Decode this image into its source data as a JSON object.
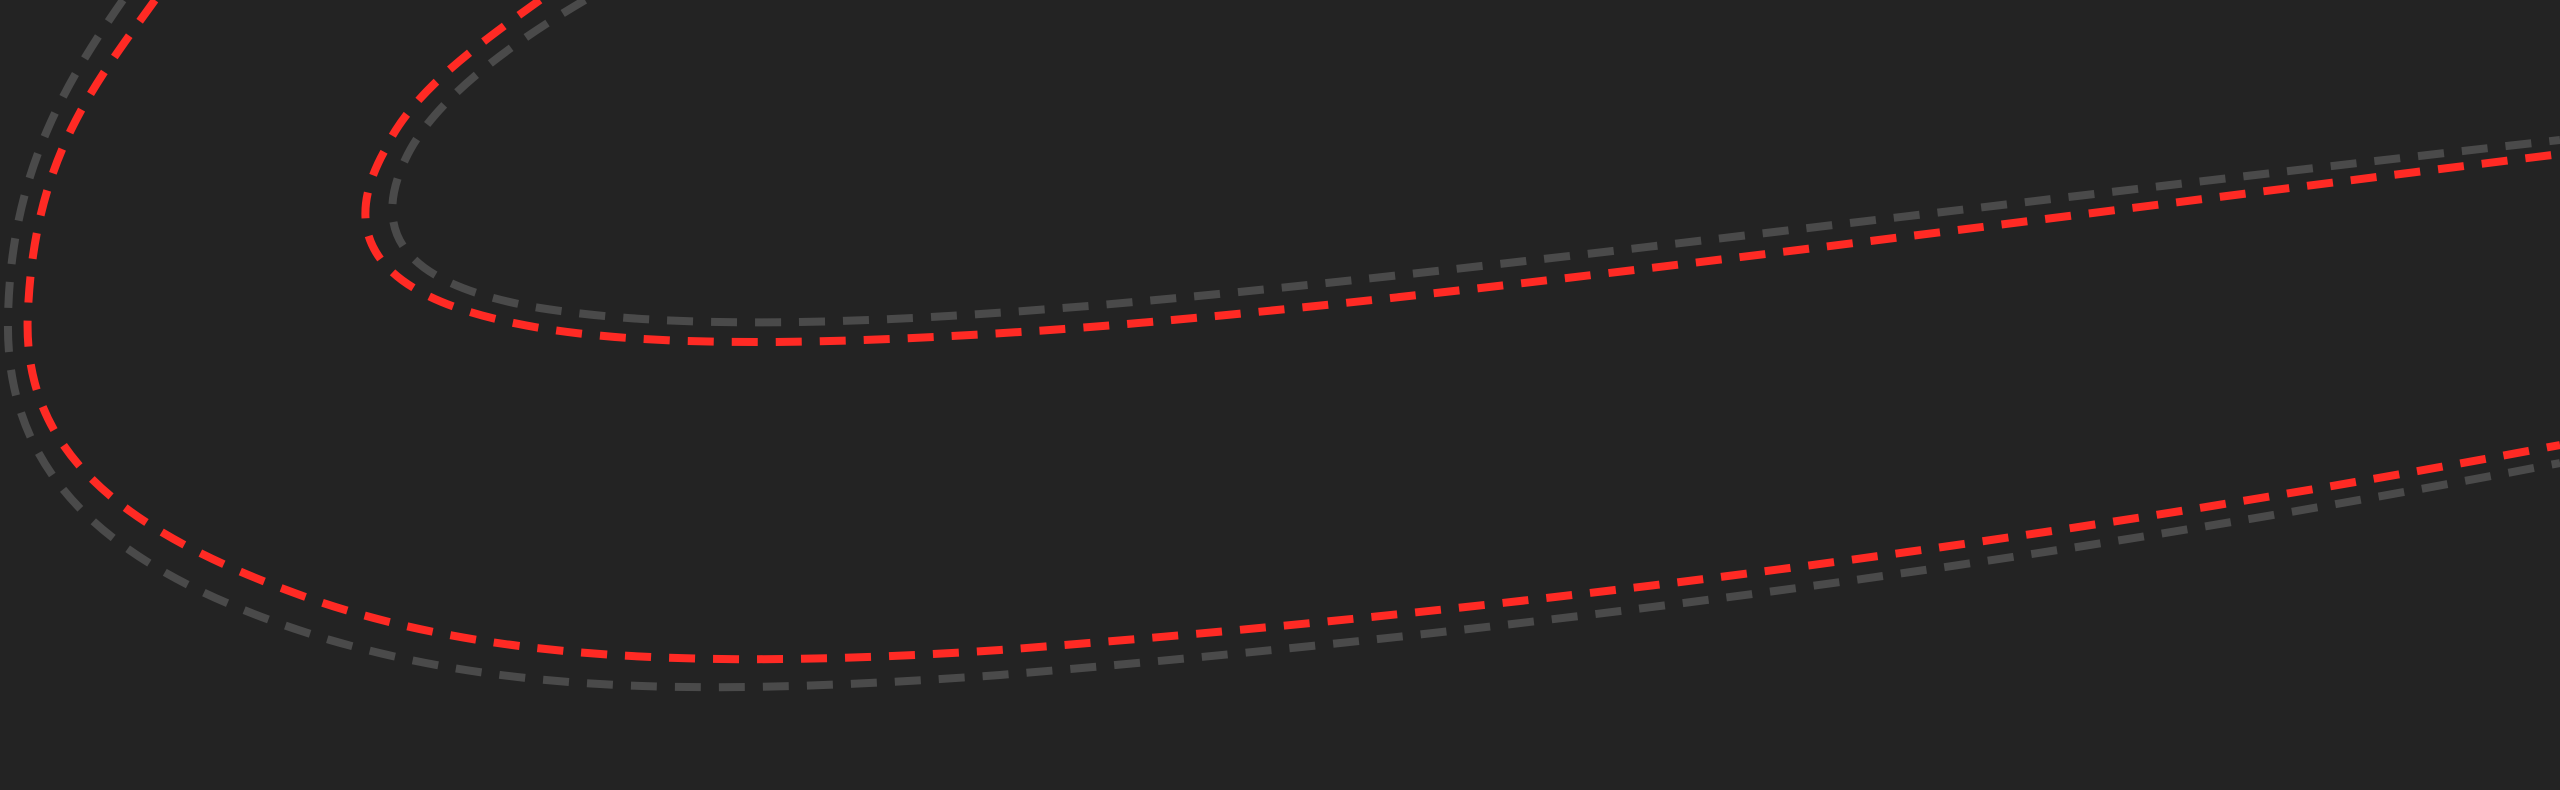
{
  "colors": {
    "background": "#232323",
    "primary_route": "#ff2a24",
    "secondary_route": "#4a4a4a"
  },
  "routes": [
    {
      "name": "outer-red-dashed-route",
      "color_key": "primary_route"
    },
    {
      "name": "outer-gray-dashed-route",
      "color_key": "secondary_route"
    },
    {
      "name": "inner-red-dashed-route",
      "color_key": "primary_route"
    },
    {
      "name": "inner-gray-dashed-route",
      "color_key": "secondary_route"
    }
  ]
}
